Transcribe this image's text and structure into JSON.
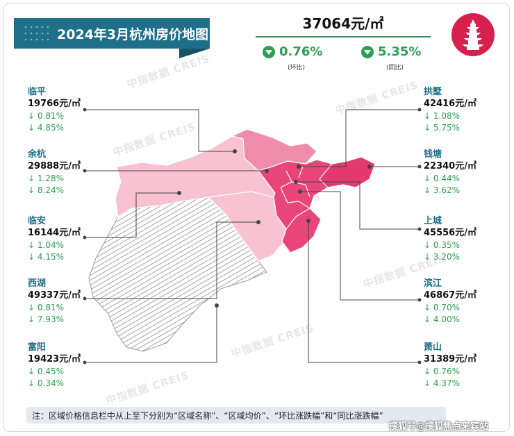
{
  "title": "2024年3月杭州房价地图",
  "headline": {
    "avg_price": "37064元/㎡",
    "mom_change": "0.76%",
    "mom_label": "(环比)",
    "yoy_change": "5.35%",
    "yoy_label": "(同比)"
  },
  "watermark": "中指数据 CREIS",
  "note": "注：区域价格信息栏中从上至下分别为“区域名称”、“区域均价”、“环比涨跌幅”和“同比涨跌幅”",
  "credit": "搜狐号@搜狐焦点来宾站",
  "colors": {
    "brand": "#1f6f8a",
    "decline": "#2e9e52",
    "logo": "#d8204f",
    "tier_high": "#e8457a",
    "tier_mid": "#f08cab",
    "tier_low": "#f8c2d3",
    "tier_hatched": "#8c8c8c"
  },
  "chart_data": {
    "type": "map",
    "districts": [
      {
        "name": "临平",
        "avg_price": 19766,
        "price_text": "19766元/㎡",
        "mom_text": "↓ 0.81%",
        "yoy_text": "↓ 4.85%",
        "mom": -0.81,
        "yoy": -4.85
      },
      {
        "name": "余杭",
        "avg_price": 29888,
        "price_text": "29888元/㎡",
        "mom_text": "↓ 1.28%",
        "yoy_text": "↓ 8.24%",
        "mom": -1.28,
        "yoy": -8.24
      },
      {
        "name": "临安",
        "avg_price": 16144,
        "price_text": "16144元/㎡",
        "mom_text": "↓ 1.04%",
        "yoy_text": "↓ 4.15%",
        "mom": -1.04,
        "yoy": -4.15
      },
      {
        "name": "西湖",
        "avg_price": 49337,
        "price_text": "49337元/㎡",
        "mom_text": "↓ 0.81%",
        "yoy_text": "↓ 7.93%",
        "mom": -0.81,
        "yoy": -7.93
      },
      {
        "name": "富阳",
        "avg_price": 19423,
        "price_text": "19423元/㎡",
        "mom_text": "↓ 0.45%",
        "yoy_text": "↓ 0.34%",
        "mom": -0.45,
        "yoy": -0.34
      },
      {
        "name": "拱墅",
        "avg_price": 42416,
        "price_text": "42416元/㎡",
        "mom_text": "↓ 1.08%",
        "yoy_text": "↓ 5.75%",
        "mom": -1.08,
        "yoy": -5.75
      },
      {
        "name": "钱塘",
        "avg_price": 22340,
        "price_text": "22340元/㎡",
        "mom_text": "↓ 0.44%",
        "yoy_text": "↓ 3.62%",
        "mom": -0.44,
        "yoy": -3.62
      },
      {
        "name": "上城",
        "avg_price": 45556,
        "price_text": "45556元/㎡",
        "mom_text": "↓ 0.35%",
        "yoy_text": "↓ 3.20%",
        "mom": -0.35,
        "yoy": -3.2
      },
      {
        "name": "滨江",
        "avg_price": 46867,
        "price_text": "46867元/㎡",
        "mom_text": "↓ 0.70%",
        "yoy_text": "↓ 4.00%",
        "mom": -0.7,
        "yoy": -4.0
      },
      {
        "name": "萧山",
        "avg_price": 31389,
        "price_text": "31389元/㎡",
        "mom_text": "↓ 0.76%",
        "yoy_text": "↓ 4.37%",
        "mom": -0.76,
        "yoy": -4.37
      }
    ]
  }
}
